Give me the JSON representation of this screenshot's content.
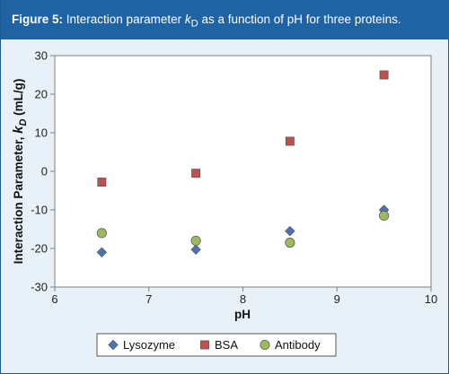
{
  "caption": {
    "figure_label": "Figure 5:",
    "text_before": " Interaction parameter ",
    "k_symbol": "k",
    "k_sub": "D",
    "text_after": " as a function of pH for three proteins."
  },
  "colors": {
    "header_bg": "#1f63a3",
    "panel_bg": "#e9f1f8",
    "lysozyme": "#4a72b8",
    "bsa": "#c0504d",
    "antibody": "#9bbb59"
  },
  "chart_data": {
    "type": "scatter",
    "xlabel": "pH",
    "ylabel_main": "Interaction Parameter, ",
    "ylabel_k": "k",
    "ylabel_sub": "D",
    "ylabel_unit": " (mL/g)",
    "xlim": [
      6,
      10
    ],
    "ylim": [
      -30,
      30
    ],
    "xticks": [
      "6",
      "7",
      "8",
      "9",
      "10"
    ],
    "yticks": [
      "30",
      "20",
      "10",
      "0",
      "-10",
      "-20",
      "-30"
    ],
    "grid": false,
    "legend_position": "bottom",
    "series": [
      {
        "name": "Lysozyme",
        "marker": "diamond",
        "color": "#4a72b8",
        "x": [
          6.5,
          7.5,
          8.5,
          9.5
        ],
        "y": [
          -21,
          -20.3,
          -15.5,
          -10
        ]
      },
      {
        "name": "BSA",
        "marker": "square",
        "color": "#c0504d",
        "x": [
          6.5,
          7.5,
          8.5,
          9.5
        ],
        "y": [
          -2.8,
          -0.5,
          7.8,
          25
        ]
      },
      {
        "name": "Antibody",
        "marker": "circle",
        "color": "#9bbb59",
        "x": [
          6.5,
          7.5,
          8.5,
          9.5
        ],
        "y": [
          -16,
          -18,
          -18.5,
          -11.5
        ]
      }
    ]
  }
}
